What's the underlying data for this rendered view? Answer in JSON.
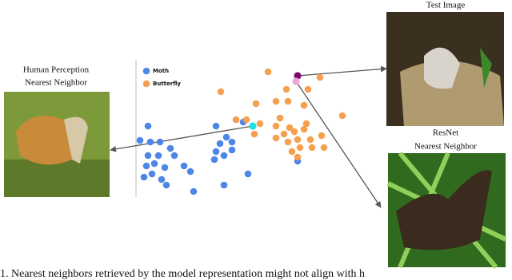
{
  "chart_data": {
    "type": "scatter",
    "xlim": [
      0,
      270
    ],
    "ylim": [
      0,
      170
    ],
    "legend": "top-left",
    "series": [
      {
        "name": "Moth",
        "color": "#4e86e8",
        "x": [
          15,
          5,
          18,
          30,
          43,
          15,
          28,
          48,
          13,
          23,
          36,
          20,
          32,
          10,
          38,
          60,
          68,
          72,
          100,
          100,
          105,
          113,
          120,
          110,
          98,
          120,
          110,
          140,
          134,
          202
        ],
        "values": [
          92,
          74,
          72,
          72,
          64,
          55,
          55,
          55,
          42,
          45,
          40,
          32,
          25,
          28,
          18,
          42,
          35,
          10,
          92,
          60,
          70,
          78,
          72,
          55,
          50,
          62,
          18,
          32,
          97,
          48
        ]
      },
      {
        "name": "Butterfly",
        "color": "#f5a04e",
        "x": [
          165,
          230,
          106,
          188,
          215,
          150,
          175,
          190,
          210,
          125,
          138,
          155,
          175,
          192,
          210,
          185,
          198,
          202,
          218,
          232,
          220,
          190,
          205,
          195,
          175,
          235,
          258,
          202,
          148,
          213,
          180
        ],
        "values": [
          160,
          153,
          135,
          138,
          138,
          120,
          123,
          123,
          118,
          100,
          100,
          95,
          92,
          90,
          88,
          82,
          85,
          75,
          75,
          80,
          65,
          72,
          65,
          60,
          77,
          65,
          105,
          53,
          82,
          95,
          102
        ]
      }
    ],
    "highlights": [
      {
        "color": "#7a0a6e",
        "x": 202,
        "y": 155
      },
      {
        "color": "#f2a6d6",
        "x": 200,
        "y": 148
      },
      {
        "color": "#22e0e0",
        "x": 146,
        "y": 92
      }
    ]
  },
  "images": {
    "test": "Test Image",
    "resnet": [
      "ResNet",
      "Nearest Neighbor"
    ],
    "human": [
      "Human Perception",
      "Nearest Neighbor"
    ]
  },
  "caption": "1.   Nearest neighbors retrieved by the model representation might not align with h"
}
